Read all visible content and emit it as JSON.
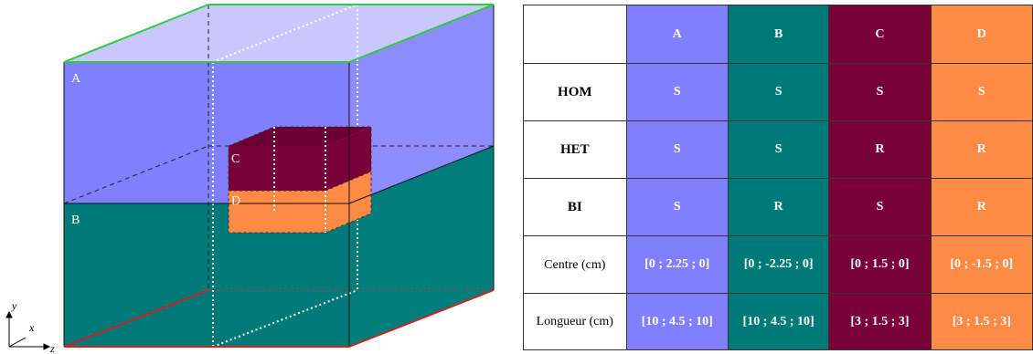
{
  "diagram": {
    "region_labels": [
      "A",
      "B",
      "C",
      "D"
    ],
    "axes": {
      "y": "y",
      "x": "x",
      "z": "z"
    },
    "colors": {
      "A": "#8080ff",
      "B": "#007a78",
      "C": "#7a0038",
      "D": "#ff8a45"
    }
  },
  "table": {
    "columns": [
      "A",
      "B",
      "C",
      "D"
    ],
    "rows": [
      {
        "label": "HOM",
        "values": [
          "S",
          "S",
          "S",
          "S"
        ]
      },
      {
        "label": "HET",
        "values": [
          "S",
          "S",
          "R",
          "R"
        ]
      },
      {
        "label": "BI",
        "values": [
          "S",
          "R",
          "S",
          "R"
        ]
      },
      {
        "label": "Centre (cm)",
        "values": [
          "[0 ; 2.25 ; 0]",
          "[0 ; -2.25 ; 0]",
          "[0 ; 1.5 ; 0]",
          "[0 ; -1.5 ; 0]"
        ]
      },
      {
        "label": "Longueur (cm)",
        "values": [
          "[10 ; 4.5 ; 10]",
          "[10 ; 4.5 ; 10]",
          "[3 ; 1.5 ; 3]",
          "[3 ; 1.5 ; 3]"
        ]
      }
    ]
  }
}
